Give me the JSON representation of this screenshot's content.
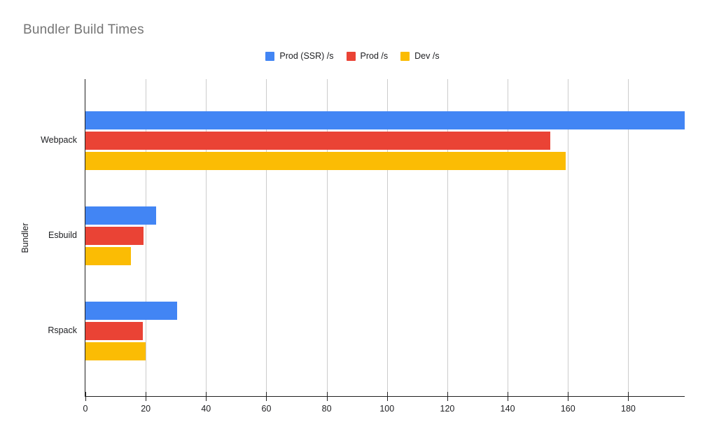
{
  "page": {
    "background": "#ffffff"
  },
  "chart_data": {
    "type": "bar",
    "orientation": "horizontal",
    "title": "Bundler Build Times",
    "title_color": "#757575",
    "categories": [
      "Webpack",
      "Esbuild",
      "Rspack"
    ],
    "series": [
      {
        "name": "Prod (SSR) /s",
        "color": "#4285F4",
        "values": [
          198.7,
          23.5,
          30.5
        ]
      },
      {
        "name": "Prod /s",
        "color": "#EA4335",
        "values": [
          154.2,
          19.3,
          19.0
        ]
      },
      {
        "name": "Dev /s",
        "color": "#FBBC04",
        "values": [
          159.2,
          15.1,
          19.9
        ]
      }
    ],
    "xlabel": "",
    "ylabel": "Bundler",
    "x_ticks": [
      0,
      20,
      40,
      60,
      80,
      100,
      120,
      140,
      160,
      180
    ],
    "xlim": [
      0,
      198.7
    ],
    "grid": true,
    "gridline_color": "#cccccc",
    "axis_color": "#212121",
    "legend_position": "top-center"
  }
}
